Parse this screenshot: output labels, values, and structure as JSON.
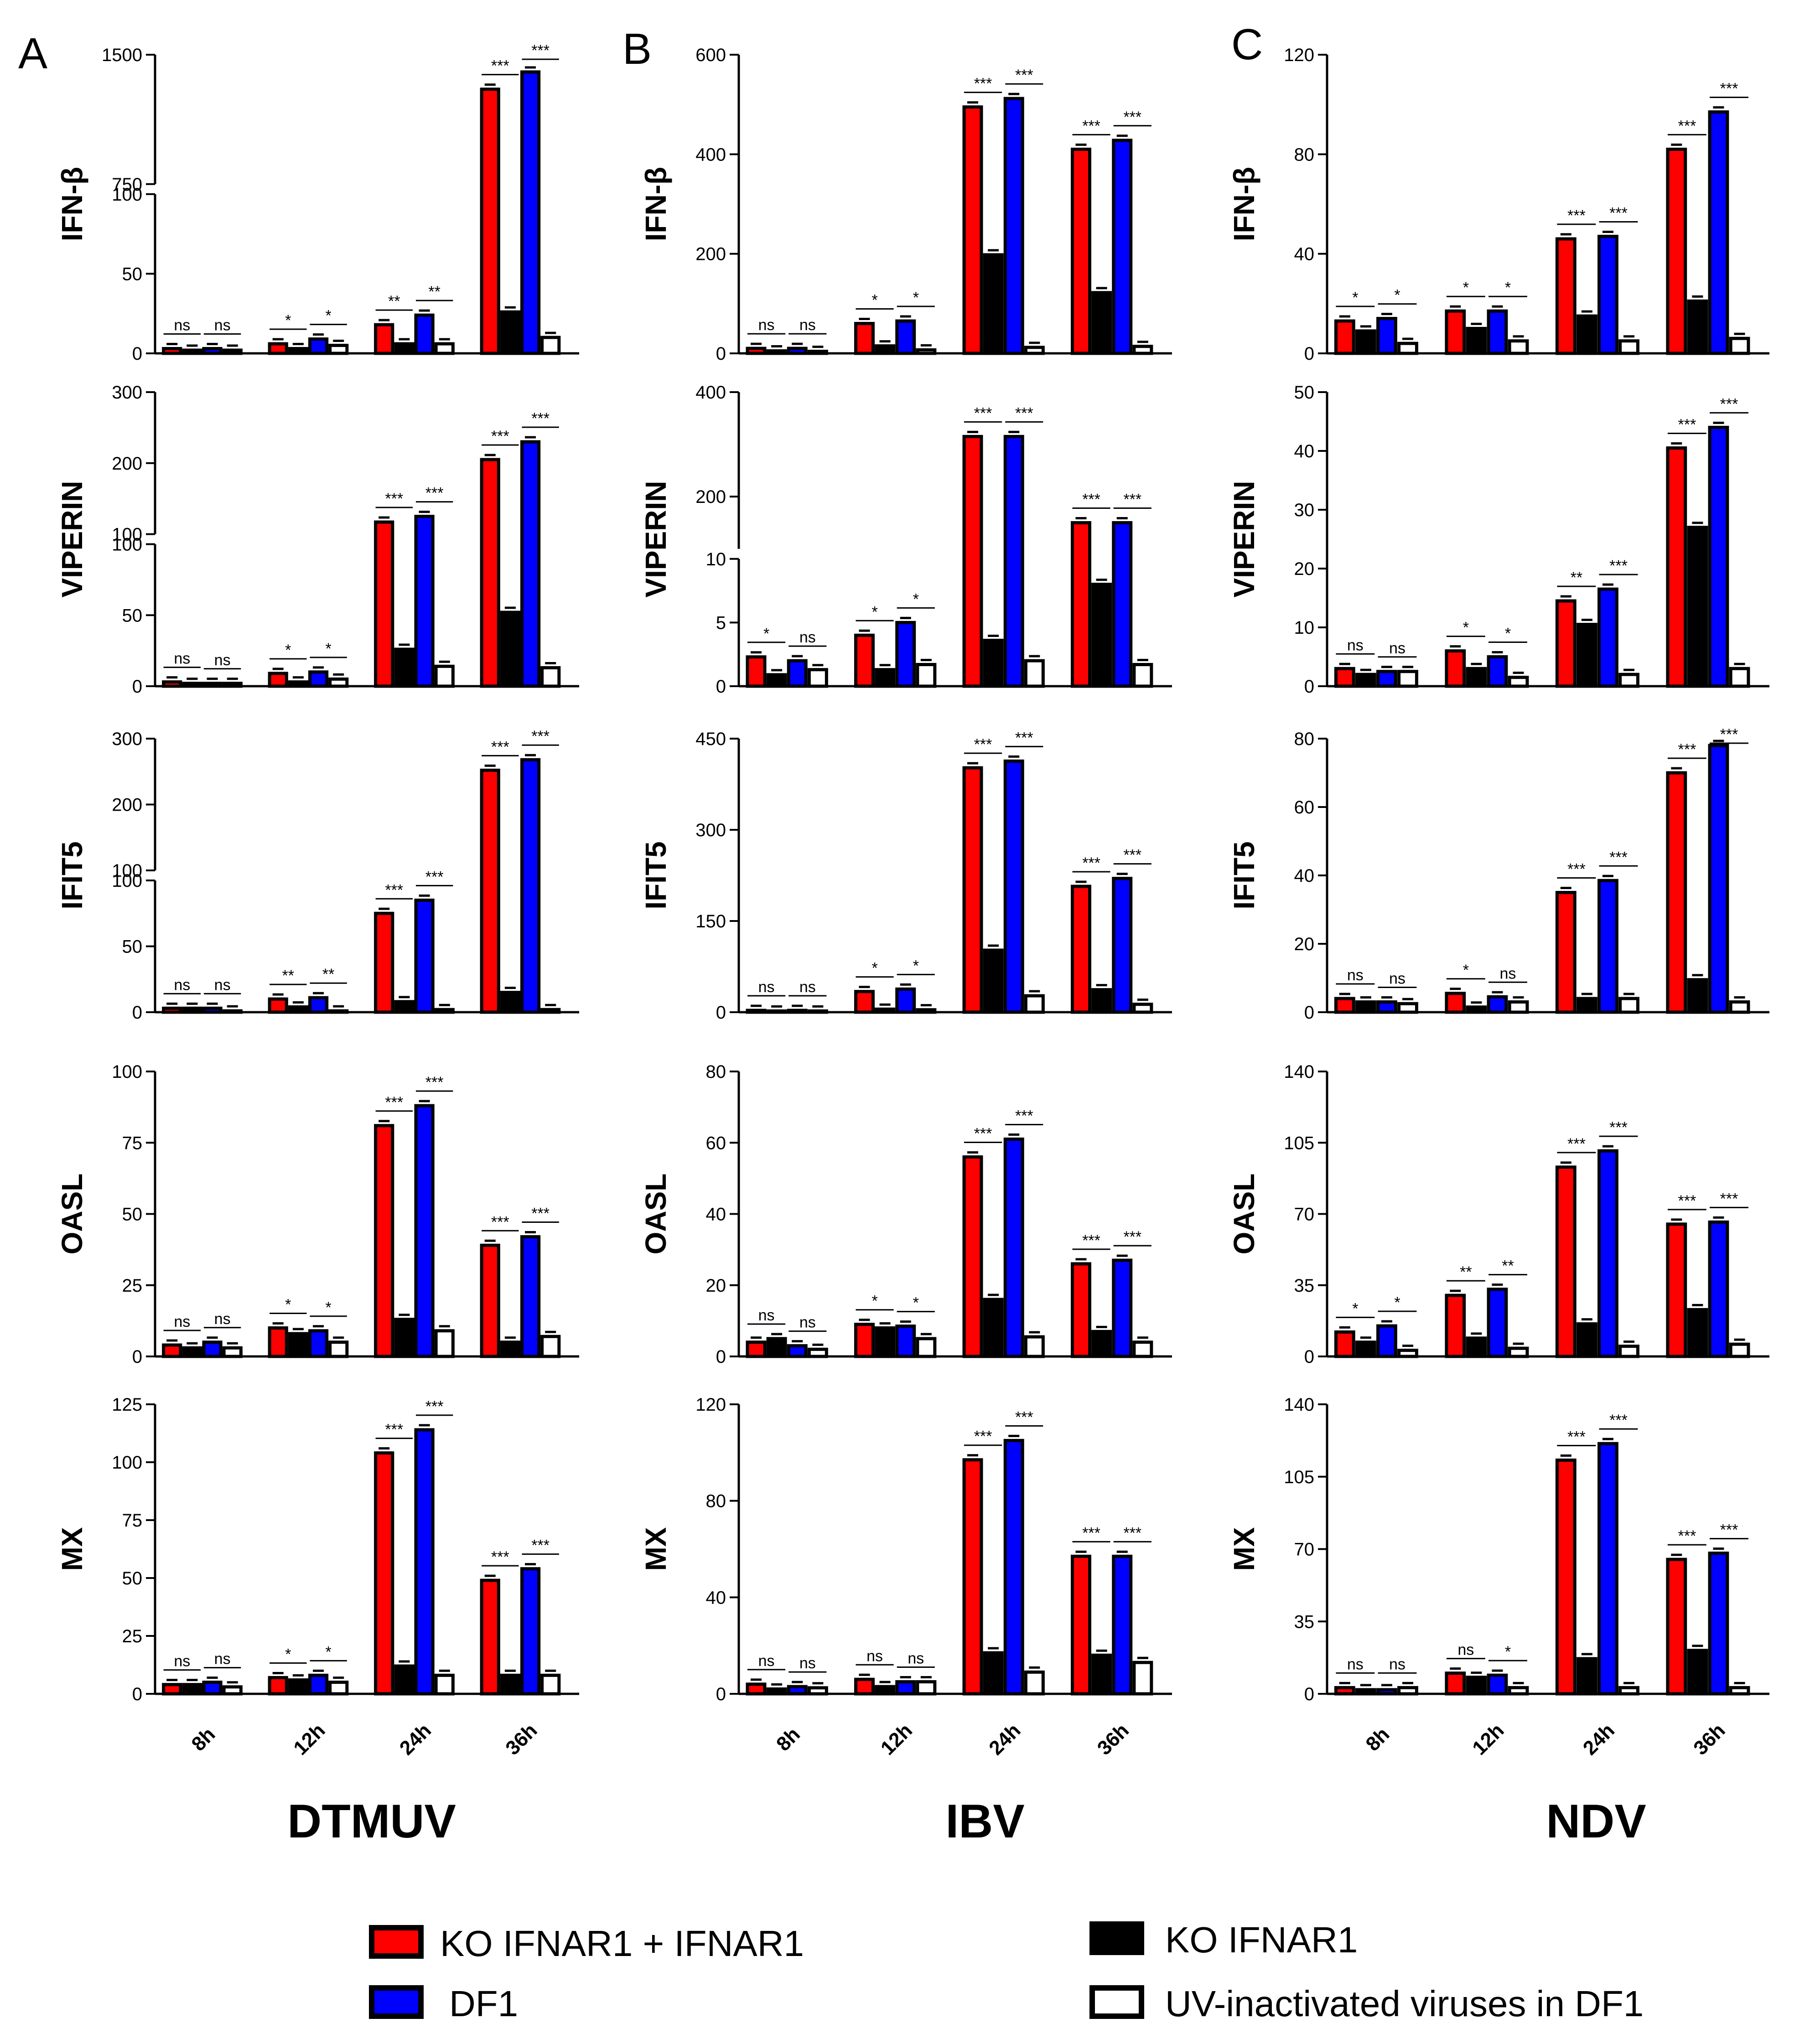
{
  "panel_labels": [
    "A",
    "B",
    "C"
  ],
  "virus_labels": [
    "DTMUV",
    "IBV",
    "NDV"
  ],
  "legend": [
    {
      "label": "KO IFNAR1 + IFNAR1",
      "color": "#ff0000"
    },
    {
      "label": "KO IFNAR1",
      "color": "#000000"
    },
    {
      "label": "DF1",
      "color": "#0000ff"
    },
    {
      "label": "UV-inactivated viruses in DF1",
      "color": "#ffffff"
    }
  ],
  "chart_data": [
    {
      "type": "bar",
      "virus": "DTMUV",
      "gene": "IFN-β",
      "categories": [
        "8h",
        "12h",
        "24h",
        "36h"
      ],
      "yticks": [
        "0",
        "50",
        "100",
        "750",
        "1500"
      ],
      "ylim": [
        0,
        1500
      ],
      "axis_break": [
        100,
        750
      ],
      "series": [
        {
          "name": "KO IFNAR1 + IFNAR1",
          "values": [
            3,
            6,
            18,
            1300
          ]
        },
        {
          "name": "KO IFNAR1",
          "values": [
            2,
            3,
            6,
            26
          ]
        },
        {
          "name": "DF1",
          "values": [
            3,
            9,
            24,
            1400
          ]
        },
        {
          "name": "UV-inactivated viruses in DF1",
          "values": [
            2,
            5,
            6,
            10
          ]
        }
      ],
      "significance": [
        [
          "ns",
          "ns"
        ],
        [
          "*",
          "*"
        ],
        [
          "**",
          "**"
        ],
        [
          "***",
          "***"
        ]
      ]
    },
    {
      "type": "bar",
      "virus": "DTMUV",
      "gene": "VIPERIN",
      "categories": [
        "8h",
        "12h",
        "24h",
        "36h"
      ],
      "yticks": [
        "0",
        "50",
        "100",
        "100",
        "200",
        "300"
      ],
      "ylim": [
        0,
        300
      ],
      "axis_break": [
        100,
        100
      ],
      "series": [
        {
          "name": "KO IFNAR1 + IFNAR1",
          "values": [
            3,
            9,
            117,
            205
          ]
        },
        {
          "name": "KO IFNAR1",
          "values": [
            2,
            3,
            26,
            52
          ]
        },
        {
          "name": "DF1",
          "values": [
            2,
            10,
            125,
            230
          ]
        },
        {
          "name": "UV-inactivated viruses in DF1",
          "values": [
            2,
            5,
            14,
            13
          ]
        }
      ],
      "significance": [
        [
          "ns",
          "ns"
        ],
        [
          "*",
          "*"
        ],
        [
          "***",
          "***"
        ],
        [
          "***",
          "***"
        ]
      ]
    },
    {
      "type": "bar",
      "virus": "DTMUV",
      "gene": "IFIT5",
      "categories": [
        "8h",
        "12h",
        "24h",
        "36h"
      ],
      "yticks": [
        "0",
        "50",
        "100",
        "100",
        "200",
        "300"
      ],
      "ylim": [
        0,
        300
      ],
      "axis_break": [
        100,
        100
      ],
      "series": [
        {
          "name": "KO IFNAR1 + IFNAR1",
          "values": [
            3,
            10,
            75,
            252
          ]
        },
        {
          "name": "KO IFNAR1",
          "values": [
            3,
            4,
            8,
            15
          ]
        },
        {
          "name": "DF1",
          "values": [
            3,
            11,
            85,
            268
          ]
        },
        {
          "name": "UV-inactivated viruses in DF1",
          "values": [
            1,
            1,
            2,
            2
          ]
        }
      ],
      "significance": [
        [
          "ns",
          "ns"
        ],
        [
          "**",
          "**"
        ],
        [
          "***",
          "***"
        ],
        [
          "***",
          "***"
        ]
      ]
    },
    {
      "type": "bar",
      "virus": "DTMUV",
      "gene": "OASL",
      "categories": [
        "8h",
        "12h",
        "24h",
        "36h"
      ],
      "yticks": [
        "0",
        "25",
        "50",
        "75",
        "100"
      ],
      "ylim": [
        0,
        100
      ],
      "series": [
        {
          "name": "KO IFNAR1 + IFNAR1",
          "values": [
            4,
            10,
            81,
            39
          ]
        },
        {
          "name": "KO IFNAR1",
          "values": [
            3,
            8,
            13,
            5
          ]
        },
        {
          "name": "DF1",
          "values": [
            5,
            9,
            88,
            42
          ]
        },
        {
          "name": "UV-inactivated viruses in DF1",
          "values": [
            3,
            5,
            9,
            7
          ]
        }
      ],
      "significance": [
        [
          "ns",
          "ns"
        ],
        [
          "*",
          "*"
        ],
        [
          "***",
          "***"
        ],
        [
          "***",
          "***"
        ]
      ]
    },
    {
      "type": "bar",
      "virus": "DTMUV",
      "gene": "MX",
      "categories": [
        "8h",
        "12h",
        "24h",
        "36h"
      ],
      "yticks": [
        "0",
        "25",
        "50",
        "75",
        "100",
        "125"
      ],
      "ylim": [
        0,
        125
      ],
      "series": [
        {
          "name": "KO IFNAR1 + IFNAR1",
          "values": [
            4,
            7,
            104,
            49
          ]
        },
        {
          "name": "KO IFNAR1",
          "values": [
            4,
            6,
            12,
            8
          ]
        },
        {
          "name": "DF1",
          "values": [
            5,
            8,
            114,
            54
          ]
        },
        {
          "name": "UV-inactivated viruses in DF1",
          "values": [
            3,
            5,
            8,
            8
          ]
        }
      ],
      "significance": [
        [
          "ns",
          "ns"
        ],
        [
          "*",
          "*"
        ],
        [
          "***",
          "***"
        ],
        [
          "***",
          "***"
        ]
      ]
    },
    {
      "type": "bar",
      "virus": "IBV",
      "gene": "IFN-β",
      "categories": [
        "8h",
        "12h",
        "24h",
        "36h"
      ],
      "yticks": [
        "0",
        "200",
        "400",
        "600"
      ],
      "ylim": [
        0,
        600
      ],
      "series": [
        {
          "name": "KO IFNAR1 + IFNAR1",
          "values": [
            10,
            60,
            495,
            410
          ]
        },
        {
          "name": "KO IFNAR1",
          "values": [
            5,
            15,
            198,
            122
          ]
        },
        {
          "name": "DF1",
          "values": [
            10,
            65,
            512,
            428
          ]
        },
        {
          "name": "UV-inactivated viruses in DF1",
          "values": [
            4,
            7,
            12,
            14
          ]
        }
      ],
      "significance": [
        [
          "ns",
          "ns"
        ],
        [
          "*",
          "*"
        ],
        [
          "***",
          "***"
        ],
        [
          "***",
          "***"
        ]
      ]
    },
    {
      "type": "bar",
      "virus": "IBV",
      "gene": "VIPERIN",
      "categories": [
        "8h",
        "12h",
        "24h",
        "36h"
      ],
      "yticks": [
        "0",
        "5",
        "10",
        "200",
        "400"
      ],
      "ylim": [
        0,
        400
      ],
      "axis_break": [
        10,
        100
      ],
      "series": [
        {
          "name": "KO IFNAR1 + IFNAR1",
          "values": [
            2.3,
            4,
            315,
            150
          ]
        },
        {
          "name": "KO IFNAR1",
          "values": [
            0.9,
            1.3,
            3.6,
            8
          ]
        },
        {
          "name": "DF1",
          "values": [
            2,
            5,
            315,
            150
          ]
        },
        {
          "name": "UV-inactivated viruses in DF1",
          "values": [
            1.3,
            1.7,
            2,
            1.7
          ]
        }
      ],
      "significance": [
        [
          "*",
          "ns"
        ],
        [
          "*",
          "*"
        ],
        [
          "***",
          "***"
        ],
        [
          "***",
          "***"
        ]
      ]
    },
    {
      "type": "bar",
      "virus": "IBV",
      "gene": "IFIT5",
      "categories": [
        "8h",
        "12h",
        "24h",
        "36h"
      ],
      "yticks": [
        "0",
        "150",
        "300",
        "450"
      ],
      "ylim": [
        0,
        450
      ],
      "series": [
        {
          "name": "KO IFNAR1 + IFNAR1",
          "values": [
            3,
            34,
            402,
            207
          ]
        },
        {
          "name": "KO IFNAR1",
          "values": [
            2,
            5,
            102,
            37
          ]
        },
        {
          "name": "DF1",
          "values": [
            3,
            38,
            413,
            220
          ]
        },
        {
          "name": "UV-inactivated viruses in DF1",
          "values": [
            2,
            4,
            27,
            13
          ]
        }
      ],
      "significance": [
        [
          "ns",
          "ns"
        ],
        [
          "*",
          "*"
        ],
        [
          "***",
          "***"
        ],
        [
          "***",
          "***"
        ]
      ]
    },
    {
      "type": "bar",
      "virus": "IBV",
      "gene": "OASL",
      "categories": [
        "8h",
        "12h",
        "24h",
        "36h"
      ],
      "yticks": [
        "0",
        "20",
        "40",
        "60",
        "80"
      ],
      "ylim": [
        0,
        80
      ],
      "series": [
        {
          "name": "KO IFNAR1 + IFNAR1",
          "values": [
            4,
            9,
            56,
            26
          ]
        },
        {
          "name": "KO IFNAR1",
          "values": [
            5,
            8,
            16,
            7
          ]
        },
        {
          "name": "DF1",
          "values": [
            3,
            8.5,
            61,
            27
          ]
        },
        {
          "name": "UV-inactivated viruses in DF1",
          "values": [
            2,
            5,
            5.5,
            4
          ]
        }
      ],
      "significance": [
        [
          "ns",
          "ns"
        ],
        [
          "*",
          "*"
        ],
        [
          "***",
          "***"
        ],
        [
          "***",
          "***"
        ]
      ]
    },
    {
      "type": "bar",
      "virus": "IBV",
      "gene": "MX",
      "categories": [
        "8h",
        "12h",
        "24h",
        "36h"
      ],
      "yticks": [
        "0",
        "40",
        "80",
        "120"
      ],
      "ylim": [
        0,
        120
      ],
      "series": [
        {
          "name": "KO IFNAR1 + IFNAR1",
          "values": [
            4,
            6,
            97,
            57
          ]
        },
        {
          "name": "KO IFNAR1",
          "values": [
            2,
            3,
            17,
            16
          ]
        },
        {
          "name": "DF1",
          "values": [
            3,
            5,
            105,
            57
          ]
        },
        {
          "name": "UV-inactivated viruses in DF1",
          "values": [
            2.5,
            5,
            9,
            13
          ]
        }
      ],
      "significance": [
        [
          "ns",
          "ns"
        ],
        [
          "ns",
          "ns"
        ],
        [
          "***",
          "***"
        ],
        [
          "***",
          "***"
        ]
      ]
    },
    {
      "type": "bar",
      "virus": "NDV",
      "gene": "IFN-β",
      "categories": [
        "8h",
        "12h",
        "24h",
        "36h"
      ],
      "yticks": [
        "0",
        "40",
        "80",
        "120"
      ],
      "ylim": [
        0,
        120
      ],
      "series": [
        {
          "name": "KO IFNAR1 + IFNAR1",
          "values": [
            13,
            17,
            46,
            82
          ]
        },
        {
          "name": "KO IFNAR1",
          "values": [
            9,
            10,
            15,
            21
          ]
        },
        {
          "name": "DF1",
          "values": [
            14,
            17,
            47,
            97
          ]
        },
        {
          "name": "UV-inactivated viruses in DF1",
          "values": [
            4,
            5,
            5,
            6
          ]
        }
      ],
      "significance": [
        [
          "*",
          "*"
        ],
        [
          "*",
          "*"
        ],
        [
          "***",
          "***"
        ],
        [
          "***",
          "***"
        ]
      ]
    },
    {
      "type": "bar",
      "virus": "NDV",
      "gene": "VIPERIN",
      "categories": [
        "8h",
        "12h",
        "24h",
        "36h"
      ],
      "yticks": [
        "0",
        "10",
        "20",
        "30",
        "40",
        "50"
      ],
      "ylim": [
        0,
        50
      ],
      "series": [
        {
          "name": "KO IFNAR1 + IFNAR1",
          "values": [
            3,
            6,
            14.5,
            40.5
          ]
        },
        {
          "name": "KO IFNAR1",
          "values": [
            2,
            3,
            10.5,
            27
          ]
        },
        {
          "name": "DF1",
          "values": [
            2.5,
            5,
            16.5,
            44
          ]
        },
        {
          "name": "UV-inactivated viruses in DF1",
          "values": [
            2.5,
            1.5,
            2,
            3
          ]
        }
      ],
      "significance": [
        [
          "ns",
          "ns"
        ],
        [
          "*",
          "*"
        ],
        [
          "**",
          "***"
        ],
        [
          "***",
          "***"
        ]
      ]
    },
    {
      "type": "bar",
      "virus": "NDV",
      "gene": "IFIT5",
      "categories": [
        "8h",
        "12h",
        "24h",
        "36h"
      ],
      "yticks": [
        "0",
        "20",
        "40",
        "60",
        "80"
      ],
      "ylim": [
        0,
        80
      ],
      "series": [
        {
          "name": "KO IFNAR1 + IFNAR1",
          "values": [
            4,
            5.5,
            35,
            70
          ]
        },
        {
          "name": "KO IFNAR1",
          "values": [
            3,
            1.5,
            4,
            9.5
          ]
        },
        {
          "name": "DF1",
          "values": [
            3,
            4.5,
            38.5,
            78
          ]
        },
        {
          "name": "UV-inactivated viruses in DF1",
          "values": [
            2.5,
            3,
            4,
            3
          ]
        }
      ],
      "significance": [
        [
          "ns",
          "ns"
        ],
        [
          "*",
          "ns"
        ],
        [
          "***",
          "***"
        ],
        [
          "***",
          "***"
        ]
      ]
    },
    {
      "type": "bar",
      "virus": "NDV",
      "gene": "OASL",
      "categories": [
        "8h",
        "12h",
        "24h",
        "36h"
      ],
      "yticks": [
        "0",
        "35",
        "70",
        "105",
        "140"
      ],
      "ylim": [
        0,
        140
      ],
      "series": [
        {
          "name": "KO IFNAR1 + IFNAR1",
          "values": [
            12,
            30,
            93,
            65
          ]
        },
        {
          "name": "KO IFNAR1",
          "values": [
            7,
            9,
            16,
            23
          ]
        },
        {
          "name": "DF1",
          "values": [
            15,
            33,
            101,
            66
          ]
        },
        {
          "name": "UV-inactivated viruses in DF1",
          "values": [
            3,
            4,
            5,
            6
          ]
        }
      ],
      "significance": [
        [
          "*",
          "*"
        ],
        [
          "**",
          "**"
        ],
        [
          "***",
          "***"
        ],
        [
          "***",
          "***"
        ]
      ]
    },
    {
      "type": "bar",
      "virus": "NDV",
      "gene": "MX",
      "categories": [
        "8h",
        "12h",
        "24h",
        "36h"
      ],
      "yticks": [
        "0",
        "35",
        "70",
        "105",
        "140"
      ],
      "ylim": [
        0,
        140
      ],
      "series": [
        {
          "name": "KO IFNAR1 + IFNAR1",
          "values": [
            3,
            10,
            113,
            65
          ]
        },
        {
          "name": "KO IFNAR1",
          "values": [
            2,
            8,
            17,
            21
          ]
        },
        {
          "name": "DF1",
          "values": [
            2,
            9,
            121,
            68
          ]
        },
        {
          "name": "UV-inactivated viruses in DF1",
          "values": [
            3,
            3,
            3,
            3
          ]
        }
      ],
      "significance": [
        [
          "ns",
          "ns"
        ],
        [
          "ns",
          "*"
        ],
        [
          "***",
          "***"
        ],
        [
          "***",
          "***"
        ]
      ]
    }
  ]
}
